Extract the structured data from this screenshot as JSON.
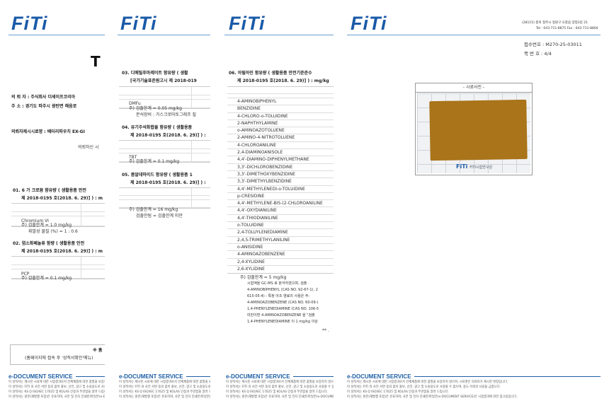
{
  "brand": {
    "logo_text": "FiTi",
    "color": "#1a5aa8"
  },
  "edoc": {
    "title": "e-DOCUMENT SERVICE",
    "lines": [
      "이 성적서는 제시된 시료에 대한 시험결과로서 전체제품에 대한 품질을 보증하지 않으며, 시료명은 의뢰자가 제시한 명칭입니다.",
      "이 성적서는 FITI 의 사전 서면 동의 없이 홍보, 선전, 광고 및 소송용도로 사용될 수 없으며, 용도 이외의 사용을 금합니다.",
      "이 성적서는 KS Q ISO/IEC 17025 및 KOLAS 인정과 무관함을 알려 드립니다.",
      "이 성적서는 원본(재발행 포함)은 유효하며, 사본 및 전자 인쇄본/파일본(e-DOCUMENT SERVICE)은 시험결과에 대한 참고용입니다."
    ]
  },
  "page1": {
    "title": "T",
    "client": "의 뢰 자 : 주식회사 더세이프코리아",
    "address": "주      소 : 경기도 파주시 광탄면 해음로",
    "sample": "의뢰자제시시료명 :  배터리파우치 EX-GI",
    "request": "의뢰하신 시",
    "s01_1": "01.  6 가 크로뮴 함유량 ( 생활용품 안전",
    "s01_2": "제 2018-0195 호(2018. 6. 29)] ) : m",
    "s01_row": "Chromium  VI",
    "s01_note1": "주)  검출한계  =  1.0 mg/kg",
    "s01_note2": "휘발성 물질 (%) = 1 : 0.6",
    "s02_1": "02.  염소화페놀류 함량 ( 생활용품 안전",
    "s02_2": "제 2018-0195 호(2018. 6. 29)] ) : m",
    "s02_row": "PCP",
    "s02_note": "주)  검출한계  =  0.1 mg/kg",
    "box_1": "※ 홈",
    "box_2": "(홈페이지에 접속 후 '성적서확인'메뉴)"
  },
  "page2": {
    "s03_1": "03.  디메틸푸마레이트 함유량 ( 생활",
    "s03_2": "[국가기술표준원고시 제 2018-019",
    "s03_row": "DMFu",
    "s03_note1": "주)  검출한계  =  0.05 mg/kg",
    "s03_note2": "분석장비 : 가스크로마토그래프 질",
    "s04_1": "04.  유기주석화합물 함유량 ( 생활용품",
    "s04_2": "제 2018-0195 호(2018. 6. 29)] ) :",
    "s04_row": "TBT",
    "s04_note": "주)  검출한계  =  0.1 mg/kg",
    "s05_1": "05.  폼알데하이드 함유량 ( 생활용품 1",
    "s05_2": "제 2018-0195 호(2018. 6. 29)] ) :",
    "s05_note1": "주)  검출한계  =  16 mg/kg",
    "s05_note2": "검출안됨  =  검출한계  미만"
  },
  "page3": {
    "s06_1": "06.  아릴아민 함유량 ( 생활용품 안전기준준수",
    "s06_2": "제 2018-0195 호(2018. 6. 29)] ) : mg/kg",
    "amines": [
      "4-AMINOBIPHENYL",
      "BENZIDINE",
      "4-CHLORO-o-TOLUIDINE",
      "2-NAPHTHYLAMINE",
      "o-AMINOAZOTOLUENE",
      "2-AMINO-4-NITROTOLUENE",
      "4-CHLOROANILINE",
      "2,4-DIAMINOANISOLE",
      "4,4'-DIAMINO-DIPHENYLMETHANE",
      "3,3'-DICHLOROBENZIDINE",
      "3,3'-DIMETHOXYBENZIDINE",
      "3,3'-DIMETHYLBENZIDINE",
      "4,4'-METHYLENEDI-o-TOLUIDINE",
      "p-CRESIDINE",
      "4,4'-METHYLENE-BIS-(2-CHLOROANILINE",
      "4,4'-OXYDIANILINE",
      "4,4'-THIODIANILINE",
      "o-TOLUIDINE",
      "2,4-TOLUYLENEDIAMINE",
      "2,4,5-TRIMETHYLANILINE",
      "o-ANISIDINE",
      "4-AMINOAZOBENZENE",
      "2,4-XYLIDINE",
      "2,6-XYLIDINE"
    ],
    "notes": [
      "주)  검출한계  =  5 mg/kg",
      "시험액을 GC-MS 로 분석하였으며, 검출 ·",
      "4-AMINOBIPHENYL (CAS NO. 92-67-1), 2",
      "615-05-4) : 특정 아조 염료의 사용은 주:",
      "4-AMINOAZOBENZENE (CAS NO. 60-09-)",
      "1,4-PHENYLENEDIAMINE (CAS NO. 106-5",
      "미만이면 4-AMINOAZOBENZENE 을 \"검출",
      "1,4-PHENYLENEDIAMINE 이 1 mg/kg 이상"
    ],
    "end_mark": "** ."
  },
  "page4": {
    "address_1": "(28115) 충북 청주시 청원구 오창읍 양청3길 21",
    "address_2": "Tel : 043-711-8875   Fax :   043-711-8804",
    "receipt": "접수번호  :  M270-25-03011",
    "page_no": "쪽  번  호  :  4/4",
    "photo_caption": "- 시료사진 -",
    "photo_watermark": "FiTi FITI시험연구원",
    "sample_color": "#a9741a"
  }
}
